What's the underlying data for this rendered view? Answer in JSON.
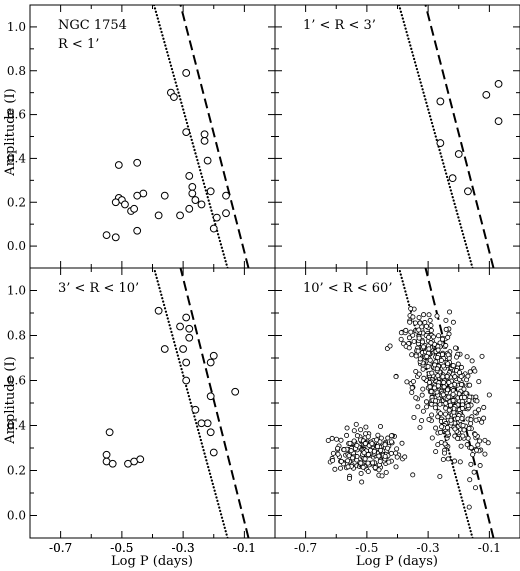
{
  "figure": {
    "xlabel": "Log P (days)",
    "ylabel": "Amplitude (I)"
  },
  "chart_data": [
    {
      "type": "scatter",
      "panel": "top-left",
      "labels": [
        "NGC 1754",
        "R < 1’"
      ],
      "xlim": [
        -0.8,
        0.0
      ],
      "ylim": [
        -0.1,
        1.1
      ],
      "xticks": [
        "-0.7",
        "-0.5",
        "-0.3",
        "-0.1"
      ],
      "yticks": [
        "0.0",
        "0.2",
        "0.4",
        "0.6",
        "0.8",
        "1.0"
      ],
      "points": [
        [
          -0.51,
          0.37
        ],
        [
          -0.45,
          0.38
        ],
        [
          -0.43,
          0.24
        ],
        [
          -0.45,
          0.23
        ],
        [
          -0.51,
          0.22
        ],
        [
          -0.5,
          0.21
        ],
        [
          -0.49,
          0.19
        ],
        [
          -0.47,
          0.16
        ],
        [
          -0.46,
          0.17
        ],
        [
          -0.52,
          0.2
        ],
        [
          -0.45,
          0.07
        ],
        [
          -0.55,
          0.05
        ],
        [
          -0.52,
          0.04
        ],
        [
          -0.36,
          0.23
        ],
        [
          -0.38,
          0.14
        ],
        [
          -0.31,
          0.14
        ],
        [
          -0.34,
          0.7
        ],
        [
          -0.33,
          0.68
        ],
        [
          -0.29,
          0.79
        ],
        [
          -0.29,
          0.52
        ],
        [
          -0.23,
          0.51
        ],
        [
          -0.23,
          0.48
        ],
        [
          -0.22,
          0.39
        ],
        [
          -0.28,
          0.32
        ],
        [
          -0.27,
          0.27
        ],
        [
          -0.27,
          0.24
        ],
        [
          -0.26,
          0.21
        ],
        [
          -0.28,
          0.17
        ],
        [
          -0.24,
          0.19
        ],
        [
          -0.21,
          0.25
        ],
        [
          -0.19,
          0.13
        ],
        [
          -0.2,
          0.08
        ],
        [
          -0.16,
          0.15
        ],
        [
          -0.16,
          0.23
        ]
      ]
    },
    {
      "type": "scatter",
      "panel": "top-right",
      "labels": [
        "1’ < R < 3’"
      ],
      "xlim": [
        -0.8,
        0.0
      ],
      "ylim": [
        -0.1,
        1.1
      ],
      "xticks": [],
      "yticks": [],
      "points": [
        [
          -0.26,
          0.66
        ],
        [
          -0.26,
          0.47
        ],
        [
          -0.2,
          0.42
        ],
        [
          -0.22,
          0.31
        ],
        [
          -0.17,
          0.25
        ],
        [
          -0.11,
          0.69
        ],
        [
          -0.07,
          0.74
        ],
        [
          -0.07,
          0.57
        ]
      ]
    },
    {
      "type": "scatter",
      "panel": "bottom-left",
      "labels": [
        "3’ < R < 10’"
      ],
      "xlim": [
        -0.8,
        0.0
      ],
      "ylim": [
        -0.1,
        1.1
      ],
      "xticks": [
        "-0.7",
        "-0.5",
        "-0.3",
        "-0.1"
      ],
      "yticks": [
        "0.0",
        "0.2",
        "0.4",
        "0.6",
        "0.8",
        "1.0"
      ],
      "points": [
        [
          -0.55,
          0.27
        ],
        [
          -0.55,
          0.24
        ],
        [
          -0.53,
          0.23
        ],
        [
          -0.54,
          0.37
        ],
        [
          -0.48,
          0.23
        ],
        [
          -0.46,
          0.24
        ],
        [
          -0.44,
          0.25
        ],
        [
          -0.38,
          0.91
        ],
        [
          -0.29,
          0.88
        ],
        [
          -0.31,
          0.84
        ],
        [
          -0.28,
          0.83
        ],
        [
          -0.28,
          0.79
        ],
        [
          -0.3,
          0.74
        ],
        [
          -0.36,
          0.74
        ],
        [
          -0.29,
          0.68
        ],
        [
          -0.29,
          0.6
        ],
        [
          -0.26,
          0.47
        ],
        [
          -0.2,
          0.71
        ],
        [
          -0.21,
          0.68
        ],
        [
          -0.21,
          0.53
        ],
        [
          -0.22,
          0.41
        ],
        [
          -0.24,
          0.41
        ],
        [
          -0.21,
          0.37
        ],
        [
          -0.2,
          0.28
        ],
        [
          -0.13,
          0.55
        ]
      ]
    },
    {
      "type": "scatter",
      "panel": "bottom-right",
      "labels": [
        "10’ < R < 60’"
      ],
      "xlim": [
        -0.8,
        0.0
      ],
      "ylim": [
        -0.1,
        1.1
      ],
      "xticks": [
        "-0.7",
        "-0.5",
        "-0.3",
        "-0.1"
      ],
      "yticks": [],
      "points": [],
      "dense_clusters": [
        {
          "x_mean": -0.5,
          "x_std": 0.055,
          "y_mean": 0.28,
          "y_std": 0.05,
          "n": 220
        },
        {
          "x_mean": -0.25,
          "x_std": 0.05,
          "y_mean": 0.58,
          "y_std": 0.16,
          "n": 560
        }
      ]
    }
  ],
  "reference_lines": [
    {
      "style": "dotted",
      "x_at_y0": -0.175,
      "x_at_y1": -0.375
    },
    {
      "style": "dashed",
      "x_at_y0": -0.105,
      "x_at_y1": -0.29
    }
  ]
}
